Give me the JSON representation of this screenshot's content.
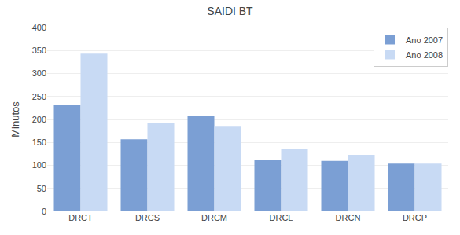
{
  "chart_data": {
    "type": "bar",
    "title": "SAIDI BT",
    "ylabel": "Minutos",
    "categories": [
      "DRCT",
      "DRCS",
      "DRCM",
      "DRCL",
      "DRCN",
      "DRCP"
    ],
    "series": [
      {
        "name": "Ano 2007",
        "color": "#7b9fd4",
        "values": [
          232,
          157,
          207,
          113,
          110,
          104
        ]
      },
      {
        "name": "Ano 2008",
        "color": "#c8daf4",
        "values": [
          343,
          193,
          186,
          135,
          123,
          104
        ]
      }
    ],
    "ylim": [
      0,
      400
    ],
    "yticks": [
      0,
      50,
      100,
      150,
      200,
      250,
      300,
      350,
      400
    ],
    "grid": true,
    "legend": "upper right"
  }
}
